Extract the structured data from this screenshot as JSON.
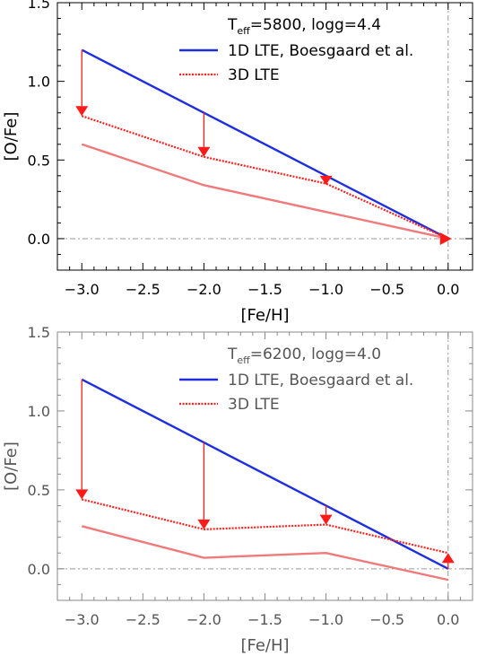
{
  "chart_data": [
    {
      "type": "line",
      "annotation": {
        "teff_symbol": "T",
        "teff_sub": "eff",
        "params": "=5800, logg=4.4"
      },
      "xlabel": "[Fe/H]",
      "ylabel": "[O/Fe]",
      "xlim": [
        -3.2,
        0.2
      ],
      "ylim": [
        -0.2,
        1.5
      ],
      "xticks": [
        -3.0,
        -2.5,
        -2.0,
        -1.5,
        -1.0,
        -0.5,
        0.0
      ],
      "xtick_labels": [
        "−3.0",
        "−2.5",
        "−2.0",
        "−1.5",
        "−1.0",
        "−0.5",
        "0.0"
      ],
      "yticks": [
        0.0,
        0.5,
        1.0,
        1.5
      ],
      "ytick_labels": [
        "0.0",
        "0.5",
        "1.0",
        "1.5"
      ],
      "legend": {
        "placement": "top-right"
      },
      "series": [
        {
          "name": "1D LTE, Boesgaard et al.",
          "style": "solid",
          "color": "#1f2fe0",
          "in_legend": true,
          "x": [
            -3.0,
            -2.0,
            -1.0,
            0.0
          ],
          "y": [
            1.2,
            0.8,
            0.4,
            0.0
          ]
        },
        {
          "name": "3D LTE",
          "style": "dotted",
          "color": "#ff2020",
          "in_legend": true,
          "x": [
            -3.0,
            -2.0,
            -1.0,
            0.0
          ],
          "y": [
            0.78,
            0.52,
            0.35,
            0.0
          ]
        },
        {
          "style": "solid",
          "color": "#f07a7a",
          "in_legend": false,
          "x": [
            -3.0,
            -2.0,
            -1.0,
            0.0
          ],
          "y": [
            0.6,
            0.34,
            0.17,
            0.0
          ]
        }
      ],
      "arrows": [
        {
          "x": -3.0,
          "from": 1.2,
          "to": 0.78
        },
        {
          "x": -2.0,
          "from": 0.8,
          "to": 0.52
        },
        {
          "x": -1.0,
          "from": 0.4,
          "to": 0.35
        },
        {
          "x": 0.0,
          "from": 0.0,
          "to": 0.0
        }
      ]
    },
    {
      "type": "line",
      "annotation": {
        "teff_symbol": "T",
        "teff_sub": "eff",
        "params": "=6200, logg=4.0"
      },
      "xlabel": "[Fe/H]",
      "ylabel": "[O/Fe]",
      "xlim": [
        -3.2,
        0.2
      ],
      "ylim": [
        -0.2,
        1.5
      ],
      "xticks": [
        -3.0,
        -2.5,
        -2.0,
        -1.5,
        -1.0,
        -0.5,
        0.0
      ],
      "xtick_labels": [
        "−3.0",
        "−2.5",
        "−2.0",
        "−1.5",
        "−1.0",
        "−0.5",
        "0.0"
      ],
      "yticks": [
        0.0,
        0.5,
        1.0,
        1.5
      ],
      "ytick_labels": [
        "0.0",
        "0.5",
        "1.0",
        "1.5"
      ],
      "legend": {
        "placement": "top-right"
      },
      "series": [
        {
          "name": "1D LTE, Boesgaard et al.",
          "style": "solid",
          "color": "#1f2fe0",
          "in_legend": true,
          "x": [
            -3.0,
            -2.0,
            -1.0,
            0.0
          ],
          "y": [
            1.2,
            0.8,
            0.4,
            0.0
          ]
        },
        {
          "name": "3D LTE",
          "style": "dotted",
          "color": "#ff2020",
          "in_legend": true,
          "x": [
            -3.0,
            -2.0,
            -1.0,
            0.0
          ],
          "y": [
            0.44,
            0.25,
            0.28,
            0.1
          ]
        },
        {
          "style": "solid",
          "color": "#f07a7a",
          "in_legend": false,
          "x": [
            -3.0,
            -2.0,
            -1.0,
            0.0
          ],
          "y": [
            0.27,
            0.07,
            0.1,
            -0.07
          ]
        }
      ],
      "arrows": [
        {
          "x": -3.0,
          "from": 1.2,
          "to": 0.44
        },
        {
          "x": -2.0,
          "from": 0.8,
          "to": 0.25
        },
        {
          "x": -1.0,
          "from": 0.4,
          "to": 0.28
        },
        {
          "x": 0.0,
          "from": 0.0,
          "to": 0.1
        }
      ]
    }
  ]
}
